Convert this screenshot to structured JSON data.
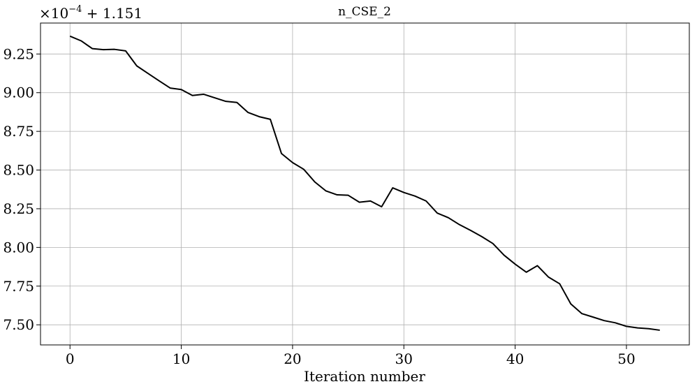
{
  "chart_data": {
    "type": "line",
    "title": "n_CSE_2",
    "xlabel": "Iteration number",
    "ylabel": "",
    "offset_text": {
      "prefix": "×10",
      "exponent": "−4",
      "suffix": " + 1.151"
    },
    "xlim": [
      -2.65,
      55.65
    ],
    "ylim": [
      7.37,
      9.45
    ],
    "xticks": [
      0,
      10,
      20,
      30,
      40,
      50
    ],
    "xtick_labels": [
      "0",
      "10",
      "20",
      "30",
      "40",
      "50"
    ],
    "yticks": [
      7.5,
      7.75,
      8.0,
      8.25,
      8.5,
      8.75,
      9.0,
      9.25
    ],
    "ytick_labels": [
      "7.50",
      "7.75",
      "8.00",
      "8.25",
      "8.50",
      "8.75",
      "9.00",
      "9.25"
    ],
    "grid": true,
    "series": [
      {
        "color": "#000000",
        "x": [
          0,
          1,
          2,
          3,
          4,
          5,
          6,
          7,
          8,
          9,
          10,
          11,
          12,
          13,
          14,
          15,
          16,
          17,
          18,
          19,
          20,
          21,
          22,
          23,
          24,
          25,
          26,
          27,
          28,
          29,
          30,
          31,
          32,
          33,
          34,
          35,
          36,
          37,
          38,
          39,
          40,
          41,
          42,
          43,
          44,
          45,
          46,
          47,
          48,
          49,
          50,
          51,
          52,
          53
        ],
        "y": [
          9.365,
          9.335,
          9.285,
          9.278,
          9.28,
          9.27,
          9.173,
          9.125,
          9.077,
          9.03,
          9.02,
          8.982,
          8.99,
          8.967,
          8.944,
          8.937,
          8.872,
          8.845,
          8.828,
          8.607,
          8.548,
          8.505,
          8.423,
          8.365,
          8.34,
          8.337,
          8.292,
          8.3,
          8.263,
          8.385,
          8.355,
          8.332,
          8.3,
          8.222,
          8.192,
          8.147,
          8.11,
          8.07,
          8.025,
          7.95,
          7.892,
          7.84,
          7.882,
          7.808,
          7.765,
          7.635,
          7.572,
          7.55,
          7.527,
          7.513,
          7.49,
          7.48,
          7.475,
          7.465
        ]
      }
    ]
  }
}
